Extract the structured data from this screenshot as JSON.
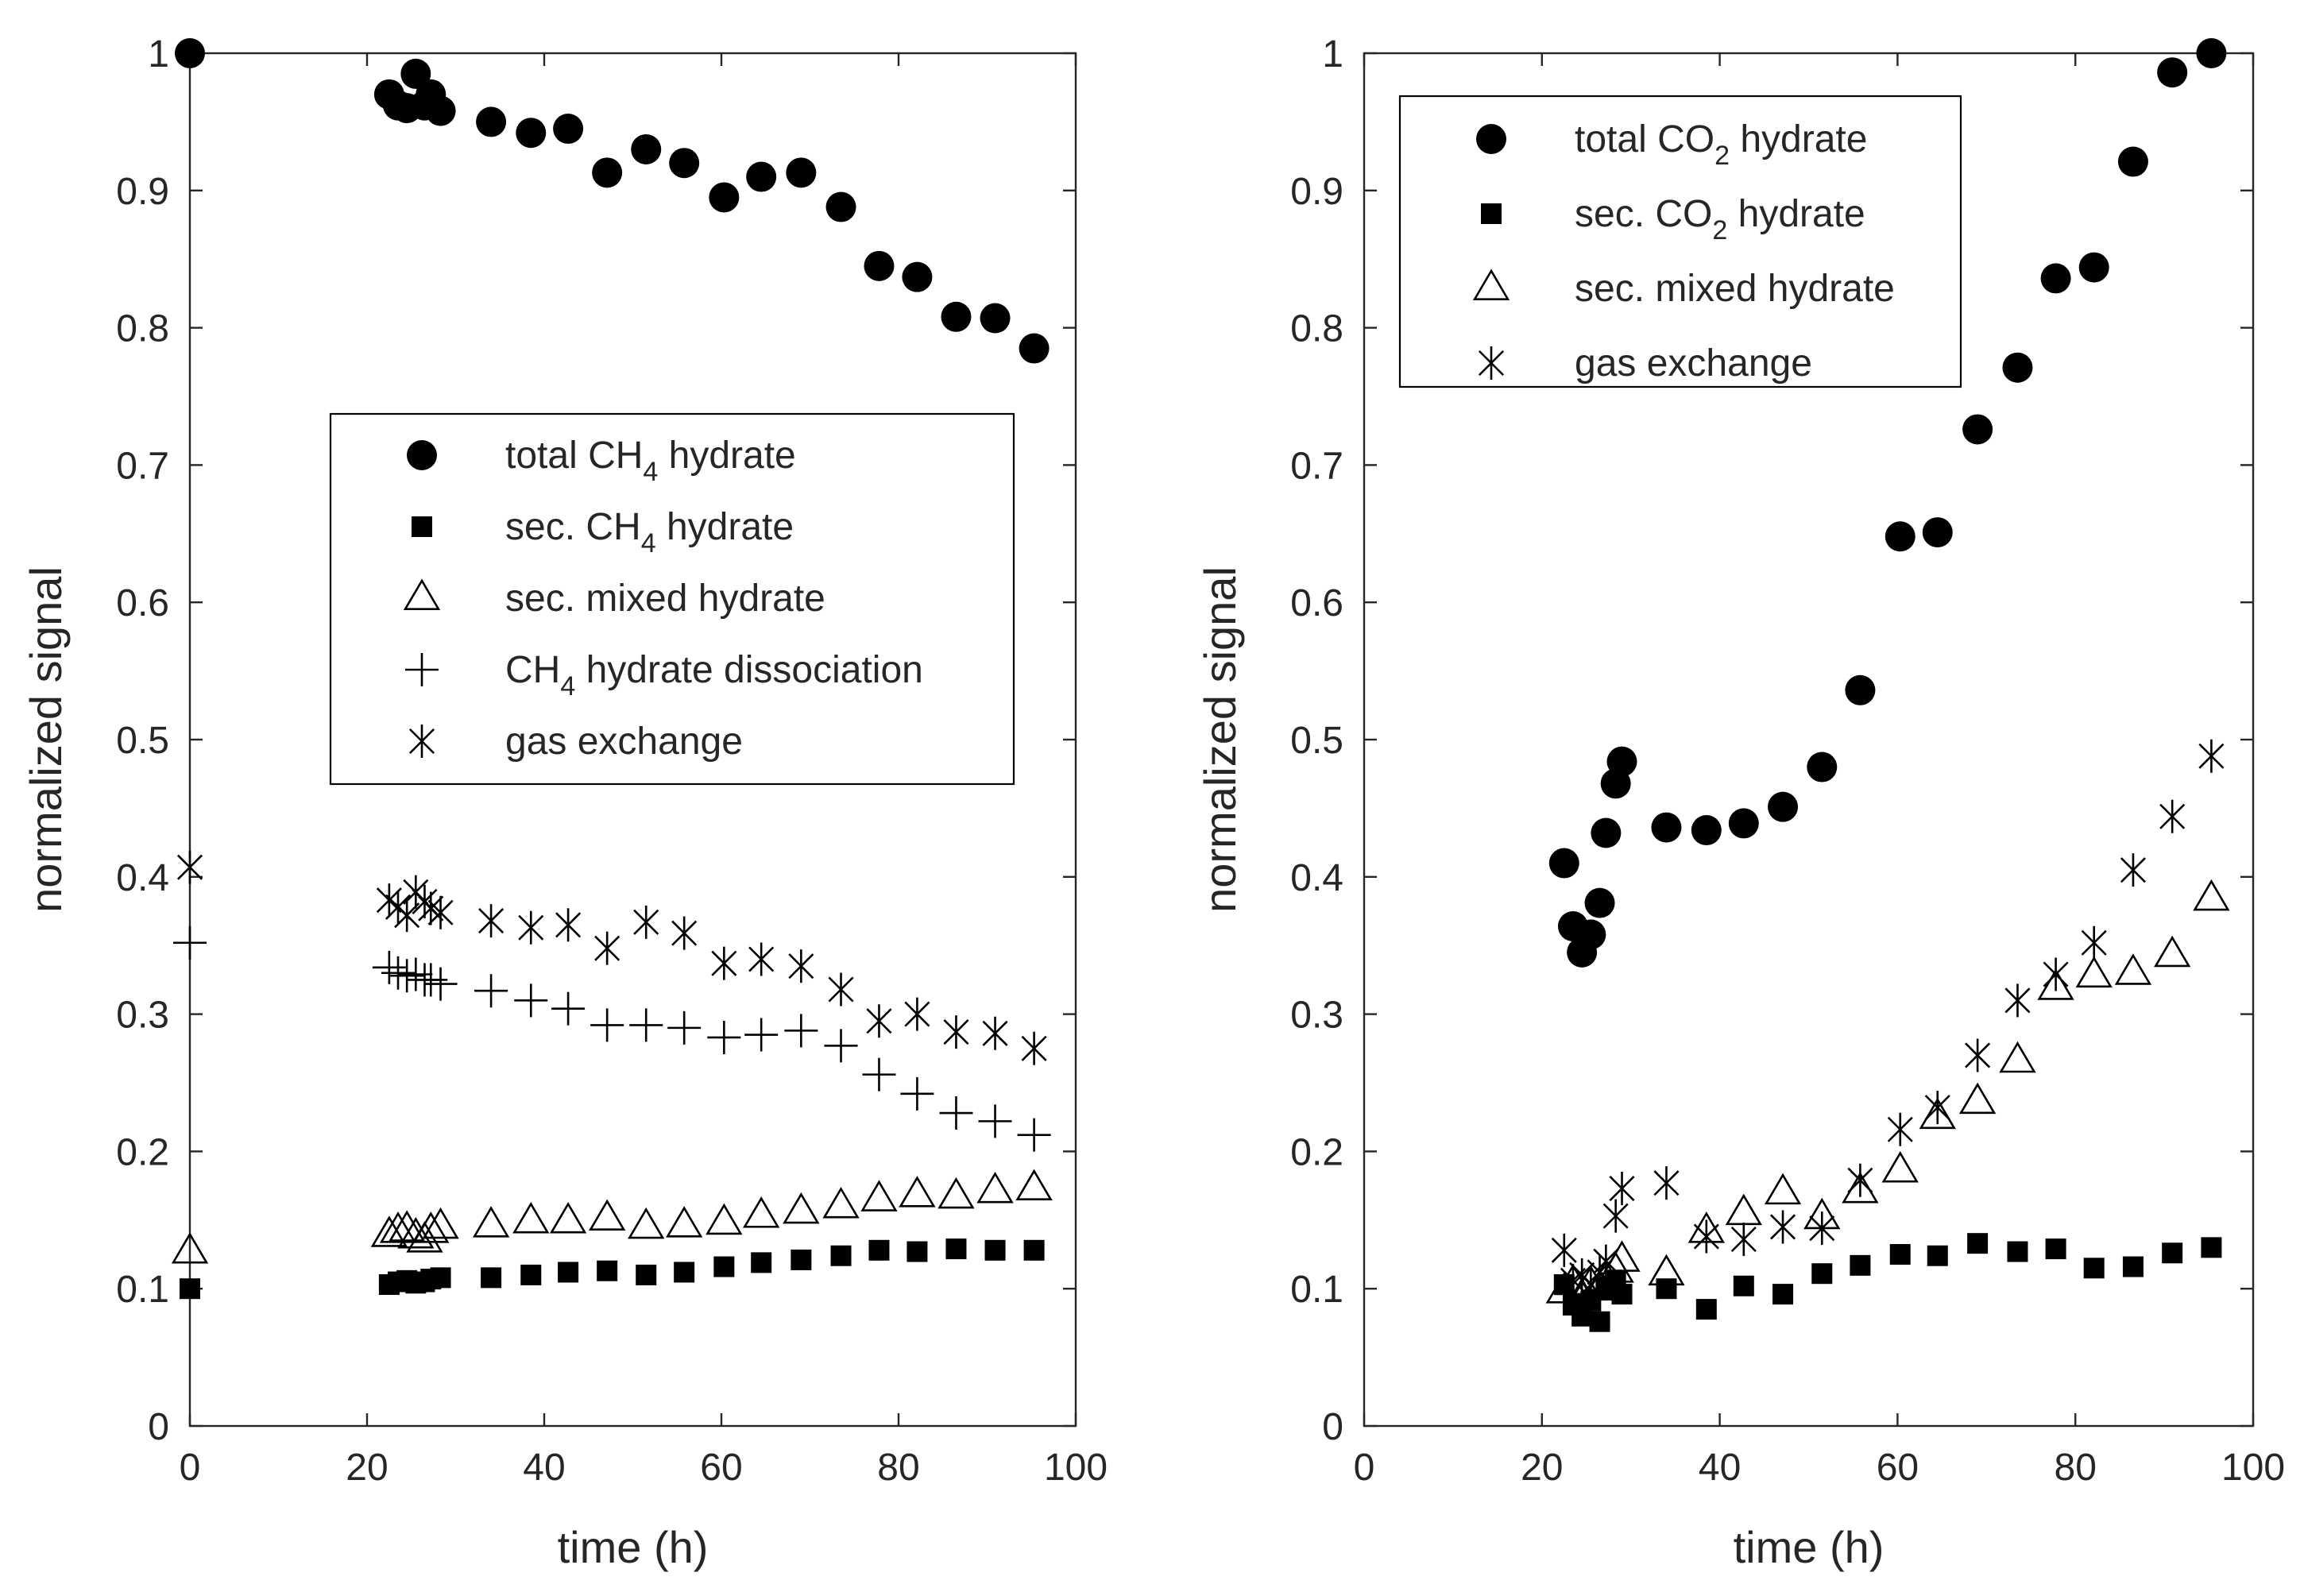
{
  "colors": {
    "ink": "#000000",
    "axis": "#262626",
    "background": "#ffffff"
  },
  "chart_data": [
    {
      "type": "scatter",
      "xlabel": "time (h)",
      "ylabel": "normalized signal",
      "xlim": [
        0,
        100
      ],
      "ylim": [
        0,
        1
      ],
      "xticks": [
        0,
        20,
        40,
        60,
        80,
        100
      ],
      "yticks": [
        0,
        0.1,
        0.2,
        0.3,
        0.4,
        0.5,
        0.6,
        0.7,
        0.8,
        0.9,
        1
      ],
      "legend_position": "center",
      "series": [
        {
          "name": "total CH4 hydrate",
          "label_main": "total CH",
          "label_sub": "4",
          "label_rest": " hydrate",
          "marker": "circle",
          "x": [
            0,
            22.5,
            23.5,
            24.5,
            25.5,
            26.5,
            27.2,
            28.3,
            34,
            38.5,
            42.7,
            47.1,
            51.5,
            55.8,
            60.3,
            64.5,
            69,
            73.5,
            77.8,
            82.1,
            86.5,
            90.9,
            95.3
          ],
          "y": [
            1.0,
            0.97,
            0.962,
            0.96,
            0.985,
            0.962,
            0.97,
            0.958,
            0.95,
            0.942,
            0.945,
            0.913,
            0.93,
            0.92,
            0.895,
            0.91,
            0.913,
            0.888,
            0.845,
            0.837,
            0.808,
            0.807,
            0.785
          ]
        },
        {
          "name": "sec. CH4 hydrate",
          "label_main": "sec. CH",
          "label_sub": "4",
          "label_rest": " hydrate",
          "marker": "square",
          "x": [
            0,
            22.5,
            23.5,
            24.5,
            25.5,
            26.5,
            27.2,
            28.3,
            34,
            38.5,
            42.7,
            47.1,
            51.5,
            55.8,
            60.3,
            64.5,
            69,
            73.5,
            77.8,
            82.1,
            86.5,
            90.9,
            95.3
          ],
          "y": [
            0.1,
            0.103,
            0.105,
            0.106,
            0.104,
            0.105,
            0.107,
            0.108,
            0.108,
            0.11,
            0.112,
            0.113,
            0.11,
            0.112,
            0.116,
            0.119,
            0.121,
            0.124,
            0.128,
            0.127,
            0.129,
            0.128,
            0.128
          ]
        },
        {
          "name": "sec. mixed hydrate",
          "label_main": "sec. mixed hydrate",
          "label_sub": "",
          "label_rest": "",
          "marker": "triangle",
          "x": [
            0,
            22.5,
            23.5,
            24.5,
            25.5,
            26.5,
            27.2,
            28.3,
            34,
            38.5,
            42.7,
            47.1,
            51.5,
            55.8,
            60.3,
            64.5,
            69,
            73.5,
            77.8,
            82.1,
            86.5,
            90.9,
            95.3
          ],
          "y": [
            0.127,
            0.139,
            0.142,
            0.143,
            0.138,
            0.135,
            0.142,
            0.145,
            0.146,
            0.149,
            0.149,
            0.151,
            0.145,
            0.146,
            0.148,
            0.153,
            0.156,
            0.16,
            0.165,
            0.168,
            0.167,
            0.171,
            0.173
          ]
        },
        {
          "name": "CH4 hydrate dissociation",
          "label_main": "CH",
          "label_sub": "4",
          "label_rest": " hydrate dissociation",
          "marker": "plus",
          "x": [
            0,
            22.5,
            23.5,
            24.5,
            25.5,
            26.5,
            27.2,
            28.3,
            34,
            38.5,
            42.7,
            47.1,
            51.5,
            55.8,
            60.3,
            64.5,
            69,
            73.5,
            77.8,
            82.1,
            86.5,
            90.9,
            95.3
          ],
          "y": [
            0.352,
            0.334,
            0.33,
            0.328,
            0.329,
            0.325,
            0.325,
            0.322,
            0.317,
            0.31,
            0.304,
            0.292,
            0.292,
            0.29,
            0.283,
            0.285,
            0.288,
            0.277,
            0.256,
            0.242,
            0.228,
            0.222,
            0.212
          ]
        },
        {
          "name": "gas exchange",
          "label_main": "gas exchange",
          "label_sub": "",
          "label_rest": "",
          "marker": "asterisk",
          "x": [
            0,
            22.5,
            23.5,
            24.5,
            25.5,
            26.5,
            27.2,
            28.3,
            34,
            38.5,
            42.7,
            47.1,
            51.5,
            55.8,
            60.3,
            64.5,
            69,
            73.5,
            77.8,
            82.1,
            86.5,
            90.9,
            95.3
          ],
          "y": [
            0.407,
            0.383,
            0.378,
            0.372,
            0.389,
            0.382,
            0.377,
            0.374,
            0.368,
            0.363,
            0.365,
            0.348,
            0.367,
            0.359,
            0.337,
            0.34,
            0.335,
            0.318,
            0.295,
            0.3,
            0.287,
            0.286,
            0.275
          ]
        }
      ]
    },
    {
      "type": "scatter",
      "xlabel": "time (h)",
      "ylabel": "normalized signal",
      "xlim": [
        0,
        100
      ],
      "ylim": [
        0,
        1
      ],
      "xticks": [
        0,
        20,
        40,
        60,
        80,
        100
      ],
      "yticks": [
        0,
        0.1,
        0.2,
        0.3,
        0.4,
        0.5,
        0.6,
        0.7,
        0.8,
        0.9,
        1
      ],
      "legend_position": "top-left",
      "series": [
        {
          "name": "total CO2 hydrate",
          "label_main": "total CO",
          "label_sub": "2",
          "label_rest": " hydrate",
          "marker": "circle",
          "x": [
            22.5,
            23.5,
            24.5,
            25.5,
            26.5,
            27.2,
            28.3,
            29,
            34,
            38.5,
            42.7,
            47.1,
            51.5,
            55.8,
            60.3,
            64.5,
            69,
            73.5,
            77.8,
            82.1,
            86.5,
            90.9,
            95.3
          ],
          "y": [
            0.41,
            0.364,
            0.345,
            0.358,
            0.381,
            0.432,
            0.468,
            0.484,
            0.436,
            0.434,
            0.439,
            0.451,
            0.48,
            0.536,
            0.648,
            0.651,
            0.726,
            0.771,
            0.836,
            0.844,
            0.921,
            0.986,
            1.0
          ]
        },
        {
          "name": "sec. CO2 hydrate",
          "label_main": "sec. CO",
          "label_sub": "2",
          "label_rest": " hydrate",
          "marker": "square",
          "x": [
            22.5,
            23.5,
            24.5,
            25.5,
            26.5,
            27.2,
            28.3,
            29,
            34,
            38.5,
            42.7,
            47.1,
            51.5,
            55.8,
            60.3,
            64.5,
            69,
            73.5,
            77.8,
            82.1,
            86.5,
            90.9,
            95.3
          ],
          "y": [
            0.103,
            0.088,
            0.08,
            0.091,
            0.076,
            0.1,
            0.106,
            0.096,
            0.1,
            0.085,
            0.102,
            0.096,
            0.111,
            0.117,
            0.125,
            0.124,
            0.133,
            0.127,
            0.129,
            0.115,
            0.116,
            0.126,
            0.13
          ]
        },
        {
          "name": "sec. mixed hydrate",
          "label_main": "sec. mixed hydrate",
          "label_sub": "",
          "label_rest": "",
          "marker": "triangle",
          "x": [
            22.5,
            23.5,
            24.5,
            25.5,
            26.5,
            27.2,
            28.3,
            29,
            34,
            38.5,
            42.7,
            47.1,
            51.5,
            55.8,
            60.3,
            64.5,
            69,
            73.5,
            77.8,
            82.1,
            86.5,
            90.9,
            95.3
          ],
          "y": [
            0.098,
            0.104,
            0.094,
            0.103,
            0.1,
            0.107,
            0.113,
            0.121,
            0.111,
            0.142,
            0.155,
            0.17,
            0.152,
            0.171,
            0.186,
            0.225,
            0.236,
            0.266,
            0.319,
            0.328,
            0.33,
            0.343,
            0.384
          ]
        },
        {
          "name": "gas exchange",
          "label_main": "gas exchange",
          "label_sub": "",
          "label_rest": "",
          "marker": "asterisk",
          "x": [
            22.5,
            23.5,
            24.5,
            25.5,
            26.5,
            27.2,
            28.3,
            29,
            34,
            38.5,
            42.7,
            47.1,
            51.5,
            55.8,
            60.3,
            64.5,
            69,
            73.5,
            77.8,
            82.1,
            86.5,
            90.9,
            95.3
          ],
          "y": [
            0.128,
            0.106,
            0.11,
            0.103,
            0.112,
            0.12,
            0.153,
            0.173,
            0.177,
            0.138,
            0.136,
            0.145,
            0.144,
            0.179,
            0.216,
            0.232,
            0.27,
            0.31,
            0.329,
            0.352,
            0.405,
            0.444,
            0.488
          ]
        }
      ]
    }
  ]
}
